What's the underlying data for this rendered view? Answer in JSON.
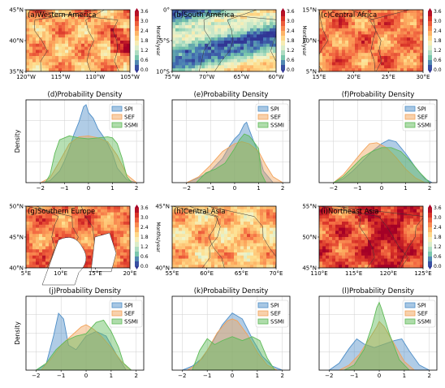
{
  "colors": {
    "SPI": "#4f8fc8",
    "SEF": "#f2a35a",
    "SSMI": "#5fba58",
    "map_water": "#ffffff",
    "border": "#333333"
  },
  "colorbar": {
    "ticks": [
      "3.6",
      "3.0",
      "2.4",
      "1.8",
      "1.2",
      "0.6",
      "0.0"
    ],
    "label": "Months/year",
    "range": [
      0,
      3.6
    ]
  },
  "chart_data": [
    {
      "type": "heatmap",
      "panel": "a",
      "title": "(a)Western America",
      "x_ticks": [
        "120°W",
        "115°W",
        "110°W",
        "105°W"
      ],
      "y_ticks": [
        "45°N",
        "40°N",
        "35°N"
      ],
      "mean_level": 2.3,
      "colorbar": true
    },
    {
      "type": "heatmap",
      "panel": "b",
      "title": "(b)South America",
      "x_ticks": [
        "75°W",
        "70°W",
        "65°W",
        "60°W"
      ],
      "y_ticks": [
        "0°",
        "5°S",
        "10°S"
      ],
      "mean_level": 1.2,
      "colorbar": true
    },
    {
      "type": "heatmap",
      "panel": "c",
      "title": "(c)Central Africa",
      "x_ticks": [
        "15°E",
        "20°E",
        "25°E",
        "30°E"
      ],
      "y_ticks": [
        "15°N",
        "10°N",
        "5°N"
      ],
      "mean_level": 2.6,
      "colorbar": true
    },
    {
      "type": "area",
      "panel": "d",
      "title": "(d)Probability Density",
      "ylabel": "Density",
      "x_ticks": [
        "−2",
        "−1",
        "0",
        "1",
        "2"
      ],
      "xlim": [
        -2.6,
        2.3
      ],
      "ylim": [
        0,
        0.85
      ],
      "legend": [
        "SPI",
        "SEF",
        "SSMI"
      ],
      "series": [
        {
          "name": "SPI",
          "x": [
            -2.0,
            -1.6,
            -1.2,
            -1.0,
            -0.8,
            -0.6,
            -0.4,
            -0.2,
            -0.1,
            0.0,
            0.2,
            0.4,
            0.6,
            0.8,
            1.0,
            1.2,
            1.6,
            2.0
          ],
          "y": [
            0.0,
            0.02,
            0.12,
            0.22,
            0.35,
            0.5,
            0.62,
            0.78,
            0.8,
            0.72,
            0.66,
            0.55,
            0.48,
            0.4,
            0.3,
            0.15,
            0.03,
            0.0
          ]
        },
        {
          "name": "SEF",
          "x": [
            -2.0,
            -1.6,
            -1.2,
            -0.8,
            -0.4,
            0.0,
            0.4,
            0.8,
            1.2,
            1.6,
            2.0
          ],
          "y": [
            0.0,
            0.05,
            0.22,
            0.4,
            0.47,
            0.48,
            0.46,
            0.42,
            0.28,
            0.08,
            0.0
          ]
        },
        {
          "name": "SSMI",
          "x": [
            -1.8,
            -1.6,
            -1.4,
            -1.2,
            -0.8,
            -0.4,
            0.0,
            0.4,
            0.8,
            1.0,
            1.2,
            1.4,
            1.6,
            1.8
          ],
          "y": [
            0.0,
            0.08,
            0.3,
            0.44,
            0.48,
            0.46,
            0.45,
            0.46,
            0.47,
            0.46,
            0.4,
            0.25,
            0.06,
            0.0
          ]
        }
      ]
    },
    {
      "type": "area",
      "panel": "e",
      "title": "(e)Probability Density",
      "x_ticks": [
        "−2",
        "−1",
        "0",
        "1",
        "2"
      ],
      "xlim": [
        -2.6,
        2.3
      ],
      "ylim": [
        0,
        0.85
      ],
      "legend": [
        "SPI",
        "SEF",
        "SSMI"
      ],
      "series": [
        {
          "name": "SPI",
          "x": [
            -2.0,
            -1.5,
            -1.0,
            -0.5,
            -0.2,
            0.0,
            0.2,
            0.4,
            0.5,
            0.6,
            0.8,
            1.0,
            1.2,
            1.6
          ],
          "y": [
            0.0,
            0.05,
            0.12,
            0.25,
            0.38,
            0.45,
            0.5,
            0.6,
            0.62,
            0.55,
            0.42,
            0.3,
            0.12,
            0.0
          ]
        },
        {
          "name": "SEF",
          "x": [
            -2.0,
            -1.5,
            -1.0,
            -0.5,
            0.0,
            0.3,
            0.6,
            1.0,
            1.3,
            1.6,
            2.0
          ],
          "y": [
            0.0,
            0.06,
            0.18,
            0.32,
            0.4,
            0.42,
            0.4,
            0.32,
            0.18,
            0.06,
            0.0
          ]
        },
        {
          "name": "SSMI",
          "x": [
            -1.6,
            -1.2,
            -0.8,
            -0.4,
            0.0,
            0.2,
            0.4,
            0.6,
            0.8,
            1.0,
            1.1,
            1.3
          ],
          "y": [
            0.0,
            0.1,
            0.14,
            0.2,
            0.35,
            0.44,
            0.5,
            0.48,
            0.42,
            0.35,
            0.1,
            0.0
          ]
        }
      ]
    },
    {
      "type": "area",
      "panel": "f",
      "title": "(f)Probability Density",
      "x_ticks": [
        "−2",
        "−1",
        "0",
        "1",
        "2"
      ],
      "xlim": [
        -2.6,
        2.3
      ],
      "ylim": [
        0,
        0.85
      ],
      "legend": [
        "SPI",
        "SEF",
        "SSMI"
      ],
      "series": [
        {
          "name": "SPI",
          "x": [
            -2.0,
            -1.6,
            -1.2,
            -0.8,
            -0.4,
            0.0,
            0.3,
            0.6,
            1.0,
            1.4,
            1.8,
            2.1
          ],
          "y": [
            0.0,
            0.04,
            0.12,
            0.22,
            0.32,
            0.4,
            0.44,
            0.42,
            0.3,
            0.16,
            0.04,
            0.0
          ]
        },
        {
          "name": "SEF",
          "x": [
            -2.0,
            -1.6,
            -1.2,
            -0.8,
            -0.5,
            -0.2,
            0.2,
            0.6,
            1.0,
            1.4,
            1.8
          ],
          "y": [
            0.0,
            0.08,
            0.2,
            0.32,
            0.4,
            0.41,
            0.36,
            0.26,
            0.14,
            0.05,
            0.0
          ]
        },
        {
          "name": "SSMI",
          "x": [
            -2.0,
            -1.6,
            -1.2,
            -0.8,
            -0.4,
            0.0,
            0.4,
            0.8,
            1.2,
            1.6,
            2.0
          ],
          "y": [
            0.0,
            0.06,
            0.16,
            0.26,
            0.32,
            0.36,
            0.36,
            0.32,
            0.22,
            0.1,
            0.0
          ]
        }
      ]
    },
    {
      "type": "heatmap",
      "panel": "g",
      "title": "(g)Southern Europe",
      "x_ticks": [
        "5°E",
        "10°E",
        "15°E",
        "20°E"
      ],
      "y_ticks": [
        "50°N",
        "45°N",
        "40°N"
      ],
      "mean_level": 2.6,
      "colorbar": true
    },
    {
      "type": "heatmap",
      "panel": "h",
      "title": "(h)Central Asia",
      "x_ticks": [
        "55°E",
        "60°E",
        "65°E",
        "70°E"
      ],
      "y_ticks": [
        "45°N",
        "40°N"
      ],
      "mean_level": 2.1,
      "colorbar": false
    },
    {
      "type": "heatmap",
      "panel": "i",
      "title": "(i)Northeast Asia",
      "x_ticks": [
        "110°E",
        "115°E",
        "120°E",
        "125°E"
      ],
      "y_ticks": [
        "55°N",
        "50°N",
        "45°N"
      ],
      "mean_level": 2.9,
      "colorbar": true
    },
    {
      "type": "area",
      "panel": "j",
      "title": "(j)Probability Density",
      "ylabel": "Density",
      "x_ticks": [
        "−2",
        "−1",
        "0",
        "1",
        "2"
      ],
      "xlim": [
        -2.4,
        2.3
      ],
      "ylim": [
        0,
        0.65
      ],
      "legend": [
        "SPI",
        "SEF",
        "SSMI"
      ],
      "series": [
        {
          "name": "SPI",
          "x": [
            -2.0,
            -1.6,
            -1.3,
            -1.1,
            -0.9,
            -0.7,
            -0.4,
            0.0,
            0.4,
            0.8,
            1.2,
            1.6
          ],
          "y": [
            0.0,
            0.05,
            0.3,
            0.5,
            0.45,
            0.22,
            0.18,
            0.3,
            0.34,
            0.3,
            0.14,
            0.0
          ]
        },
        {
          "name": "SEF",
          "x": [
            -1.8,
            -1.4,
            -1.0,
            -0.6,
            -0.2,
            0.0,
            0.3,
            0.6,
            1.0,
            1.4,
            1.8
          ],
          "y": [
            0.0,
            0.1,
            0.22,
            0.3,
            0.38,
            0.4,
            0.36,
            0.3,
            0.2,
            0.08,
            0.0
          ]
        },
        {
          "name": "SSMI",
          "x": [
            -2.0,
            -1.6,
            -1.2,
            -0.8,
            -0.4,
            0.0,
            0.4,
            0.7,
            1.0,
            1.3,
            1.5,
            1.8
          ],
          "y": [
            0.0,
            0.06,
            0.18,
            0.26,
            0.3,
            0.32,
            0.42,
            0.44,
            0.34,
            0.2,
            0.06,
            0.0
          ]
        }
      ]
    },
    {
      "type": "area",
      "panel": "k",
      "title": "(k)Probability Density",
      "x_ticks": [
        "−2",
        "−1",
        "0",
        "1",
        "2"
      ],
      "xlim": [
        -2.4,
        2.3
      ],
      "ylim": [
        0,
        0.75
      ],
      "legend": [
        "SPI",
        "SEF",
        "SSMI"
      ],
      "series": [
        {
          "name": "SPI",
          "x": [
            -2.0,
            -1.6,
            -1.2,
            -0.8,
            -0.4,
            0.0,
            0.4,
            0.8,
            1.2,
            1.6,
            2.0
          ],
          "y": [
            0.0,
            0.04,
            0.12,
            0.28,
            0.46,
            0.58,
            0.52,
            0.32,
            0.14,
            0.04,
            0.0
          ]
        },
        {
          "name": "SEF",
          "x": [
            -1.8,
            -1.4,
            -1.0,
            -0.6,
            -0.2,
            0.0,
            0.2,
            0.6,
            1.0,
            1.4,
            1.8
          ],
          "y": [
            0.0,
            0.06,
            0.2,
            0.38,
            0.5,
            0.52,
            0.5,
            0.36,
            0.18,
            0.05,
            0.0
          ]
        },
        {
          "name": "SSMI",
          "x": [
            -1.6,
            -1.3,
            -1.0,
            -0.7,
            -0.4,
            0.0,
            0.4,
            0.8,
            1.1,
            1.4,
            1.7
          ],
          "y": [
            0.0,
            0.2,
            0.32,
            0.26,
            0.3,
            0.34,
            0.3,
            0.34,
            0.3,
            0.12,
            0.0
          ]
        }
      ]
    },
    {
      "type": "area",
      "panel": "l",
      "title": "(l)Probability Density",
      "x_ticks": [
        "−2",
        "−1",
        "0",
        "1",
        "2"
      ],
      "xlim": [
        -2.4,
        2.3
      ],
      "ylim": [
        0,
        0.85
      ],
      "legend": [
        "SPI",
        "SEF",
        "SSMI"
      ],
      "series": [
        {
          "name": "SPI",
          "x": [
            -2.0,
            -1.6,
            -1.2,
            -0.9,
            -0.6,
            -0.2,
            0.2,
            0.6,
            0.9,
            1.2,
            1.6,
            2.0
          ],
          "y": [
            0.0,
            0.08,
            0.25,
            0.36,
            0.3,
            0.26,
            0.3,
            0.34,
            0.36,
            0.22,
            0.06,
            0.0
          ]
        },
        {
          "name": "SEF",
          "x": [
            -1.6,
            -1.2,
            -0.8,
            -0.4,
            -0.1,
            0.0,
            0.2,
            0.6,
            1.0,
            1.4
          ],
          "y": [
            0.0,
            0.06,
            0.18,
            0.36,
            0.5,
            0.56,
            0.5,
            0.3,
            0.1,
            0.0
          ]
        },
        {
          "name": "SSMI",
          "x": [
            -1.4,
            -1.0,
            -0.6,
            -0.3,
            -0.1,
            0.0,
            0.1,
            0.4,
            0.8,
            1.2
          ],
          "y": [
            0.0,
            0.06,
            0.24,
            0.5,
            0.72,
            0.78,
            0.7,
            0.42,
            0.12,
            0.0
          ]
        }
      ]
    }
  ]
}
